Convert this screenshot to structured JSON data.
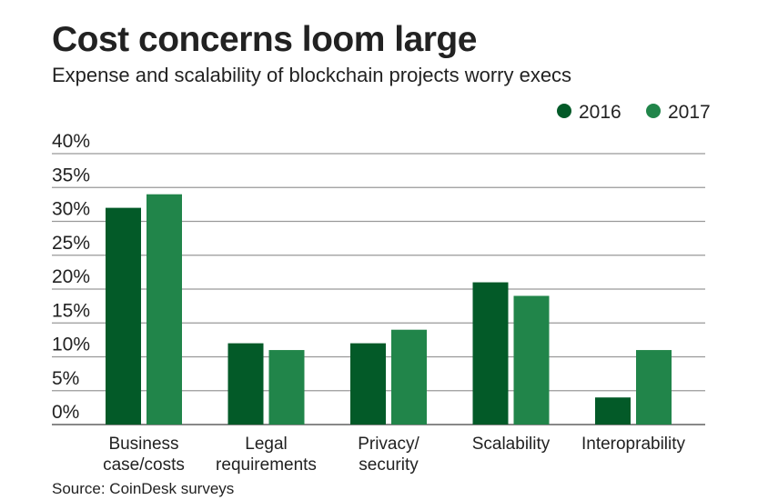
{
  "chart_data": {
    "type": "bar",
    "title": "Cost concerns loom large",
    "subtitle": "Expense and scalability of blockchain projects worry execs",
    "source": "Source: CoinDesk surveys",
    "categories": [
      [
        "Business",
        "case/costs"
      ],
      [
        "Legal",
        "requirements"
      ],
      [
        "Privacy/",
        "security"
      ],
      [
        "Scalability"
      ],
      [
        "Interoprability"
      ]
    ],
    "series": [
      {
        "name": "2016",
        "color": "#035a28",
        "values": [
          32,
          12,
          12,
          21,
          4
        ]
      },
      {
        "name": "2017",
        "color": "#21854a",
        "values": [
          34,
          11,
          14,
          19,
          11
        ]
      }
    ],
    "yticks": [
      "0%",
      "5%",
      "10%",
      "15%",
      "20%",
      "25%",
      "30%",
      "35%",
      "40%"
    ],
    "ylim": [
      0,
      40
    ],
    "grid": true,
    "legend": "top-right"
  }
}
